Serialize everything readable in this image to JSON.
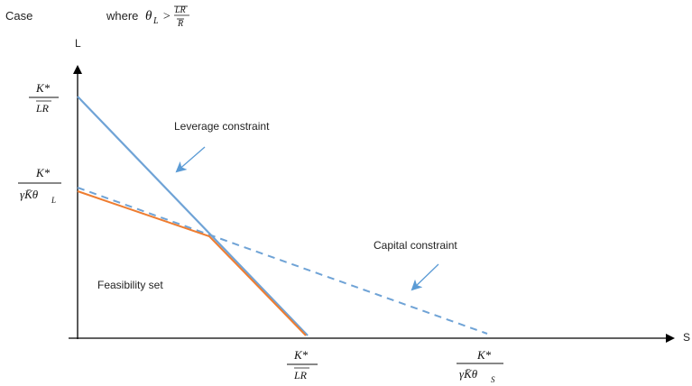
{
  "header": {
    "case_label": "Case",
    "where_text": "where",
    "theta_sym": "θ",
    "theta_sub": "L",
    "gt": ">",
    "num": "LR",
    "den": "R"
  },
  "axes": {
    "y_label": "L",
    "x_label": "S"
  },
  "labels": {
    "leverage": "Leverage constraint",
    "capital": "Capital constraint",
    "feasibility": "Feasibility set"
  },
  "fractions": {
    "y_top_num": "K*",
    "y_top_den": "LR",
    "y_mid_num": "K*",
    "y_mid_den_main": "γK̄θ",
    "y_mid_den_sub": "L",
    "x_left_num": "K*",
    "x_left_den": "LR",
    "x_right_num": "K*",
    "x_right_den_main": "γK̄θ",
    "x_right_den_sub": "S"
  },
  "colors": {
    "blue_line": "#6fa3d6",
    "orange_line": "#ee7d31",
    "arrow": "#5b9bd5",
    "axis": "#000000"
  }
}
